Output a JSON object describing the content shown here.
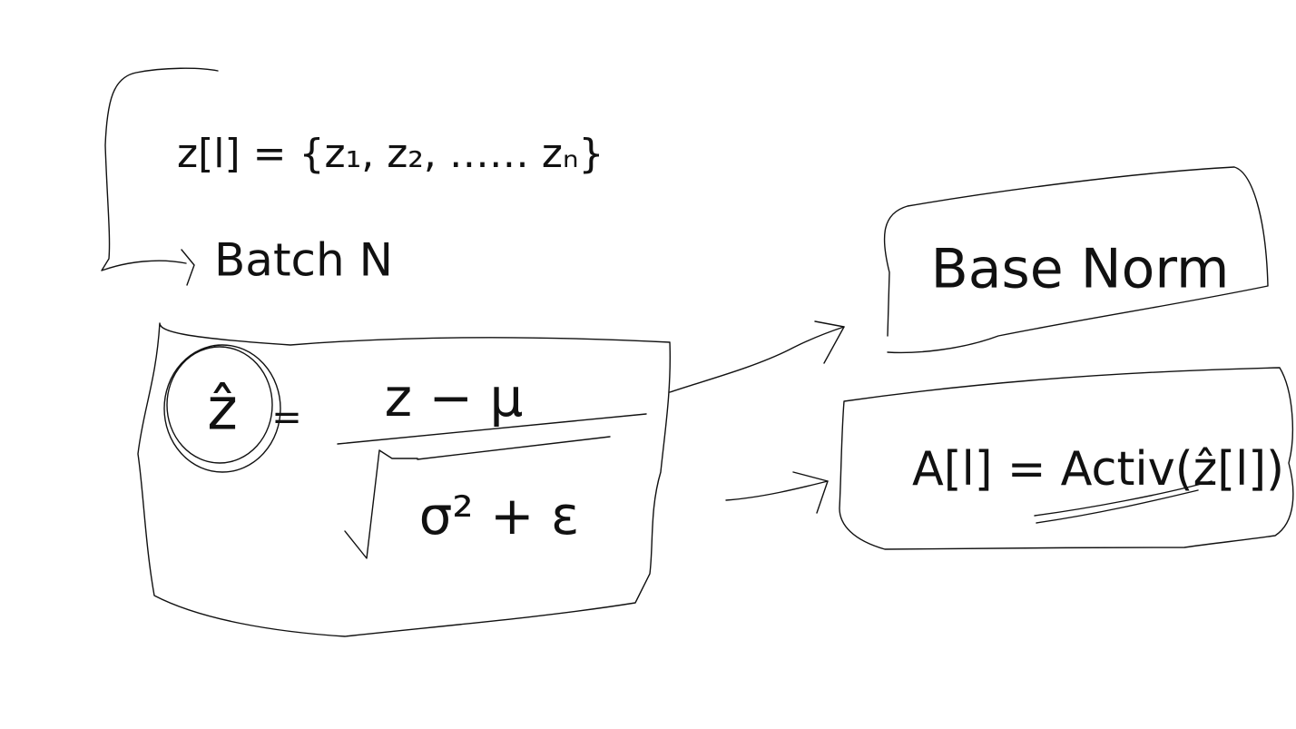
{
  "batch": {
    "set": "z[l] = {z₁, z₂, …… zₙ}",
    "label": "Batch N"
  },
  "formula": {
    "lhs": "ẑ",
    "equals": "=",
    "numerator": "z − μ",
    "denominator": "σ² + ε"
  },
  "nodes": [
    {
      "label": "Base Norm"
    },
    {
      "label": "A[l] = Activ(ẑ[l])"
    }
  ]
}
